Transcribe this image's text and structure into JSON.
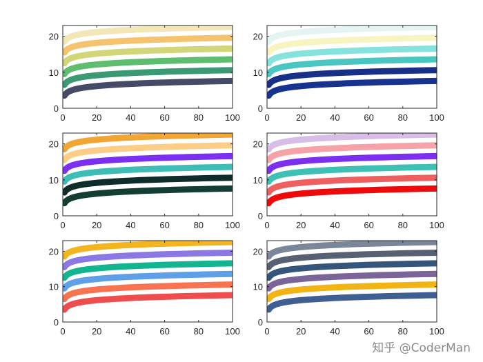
{
  "watermark": "知乎 @CoderMan",
  "chart_data": [
    {
      "type": "line",
      "panel": "row-1-left",
      "xlim": [
        0,
        100
      ],
      "ylim": [
        0,
        23
      ],
      "xticks": [
        0,
        20,
        40,
        60,
        80,
        100
      ],
      "yticks": [
        0,
        10,
        20
      ],
      "xlabel": "",
      "ylabel": "",
      "title": "",
      "legend": "none",
      "series": [
        {
          "name": "series-1",
          "color": "#454b66",
          "values": [
            {
              "x": 1,
              "y": 3.5
            },
            {
              "x": 100,
              "y": 7.6
            }
          ]
        },
        {
          "name": "series-2",
          "color": "#3b9a73",
          "values": [
            {
              "x": 1,
              "y": 6.5
            },
            {
              "x": 100,
              "y": 10.6
            }
          ]
        },
        {
          "name": "series-3",
          "color": "#5fbd6f",
          "values": [
            {
              "x": 1,
              "y": 9.5
            },
            {
              "x": 100,
              "y": 13.6
            }
          ]
        },
        {
          "name": "series-4",
          "color": "#d2d679",
          "values": [
            {
              "x": 1,
              "y": 12.5
            },
            {
              "x": 100,
              "y": 16.6
            }
          ]
        },
        {
          "name": "series-5",
          "color": "#f5c36e",
          "values": [
            {
              "x": 1,
              "y": 15.5
            },
            {
              "x": 100,
              "y": 19.6
            }
          ]
        },
        {
          "name": "series-6",
          "color": "#f3e6b7",
          "values": [
            {
              "x": 1,
              "y": 18.5
            },
            {
              "x": 100,
              "y": 22.6
            }
          ]
        }
      ]
    },
    {
      "type": "line",
      "panel": "row-1-right",
      "xlim": [
        0,
        100
      ],
      "ylim": [
        0,
        23
      ],
      "xticks": [
        0,
        20,
        40,
        60,
        80,
        100
      ],
      "yticks": [
        0,
        10,
        20
      ],
      "xlabel": "",
      "ylabel": "",
      "title": "",
      "legend": "none",
      "series": [
        {
          "name": "series-1",
          "color": "#17338f",
          "values": [
            {
              "x": 1,
              "y": 3.5
            },
            {
              "x": 100,
              "y": 7.6
            }
          ]
        },
        {
          "name": "series-2",
          "color": "#172f87",
          "values": [
            {
              "x": 1,
              "y": 6.5
            },
            {
              "x": 100,
              "y": 10.6
            }
          ]
        },
        {
          "name": "series-3",
          "color": "#49c6c2",
          "values": [
            {
              "x": 1,
              "y": 9.5
            },
            {
              "x": 100,
              "y": 13.6
            }
          ]
        },
        {
          "name": "series-4",
          "color": "#86e2dc",
          "values": [
            {
              "x": 1,
              "y": 12.5
            },
            {
              "x": 100,
              "y": 16.6
            }
          ]
        },
        {
          "name": "series-5",
          "color": "#f8f4c2",
          "values": [
            {
              "x": 1,
              "y": 15.5
            },
            {
              "x": 100,
              "y": 19.6
            }
          ]
        },
        {
          "name": "series-6",
          "color": "#e4f4f3",
          "values": [
            {
              "x": 1,
              "y": 18.5
            },
            {
              "x": 100,
              "y": 22.6
            }
          ]
        }
      ]
    },
    {
      "type": "line",
      "panel": "row-2-left",
      "xlim": [
        0,
        100
      ],
      "ylim": [
        0,
        23
      ],
      "xticks": [
        0,
        20,
        40,
        60,
        80,
        100
      ],
      "yticks": [
        0,
        10,
        20
      ],
      "xlabel": "",
      "ylabel": "",
      "title": "",
      "legend": "none",
      "series": [
        {
          "name": "series-1",
          "color": "#143d33",
          "values": [
            {
              "x": 1,
              "y": 3.5
            },
            {
              "x": 100,
              "y": 7.6
            }
          ]
        },
        {
          "name": "series-2",
          "color": "#0e2c2a",
          "values": [
            {
              "x": 1,
              "y": 6.5
            },
            {
              "x": 100,
              "y": 10.6
            }
          ]
        },
        {
          "name": "series-3",
          "color": "#3dbdb5",
          "values": [
            {
              "x": 1,
              "y": 9.5
            },
            {
              "x": 100,
              "y": 13.6
            }
          ]
        },
        {
          "name": "series-4",
          "color": "#7b2ff0",
          "values": [
            {
              "x": 1,
              "y": 12.5
            },
            {
              "x": 100,
              "y": 16.6
            }
          ]
        },
        {
          "name": "series-5",
          "color": "#fbcd86",
          "values": [
            {
              "x": 1,
              "y": 15.5
            },
            {
              "x": 100,
              "y": 19.6
            }
          ]
        },
        {
          "name": "series-6",
          "color": "#f1a533",
          "values": [
            {
              "x": 1,
              "y": 18.5
            },
            {
              "x": 100,
              "y": 22.6
            }
          ]
        }
      ]
    },
    {
      "type": "line",
      "panel": "row-2-right",
      "xlim": [
        0,
        100
      ],
      "ylim": [
        0,
        23
      ],
      "xticks": [
        0,
        20,
        40,
        60,
        80,
        100
      ],
      "yticks": [
        0,
        10,
        20
      ],
      "xlabel": "",
      "ylabel": "",
      "title": "",
      "legend": "none",
      "series": [
        {
          "name": "series-1",
          "color": "#ee0a0a",
          "values": [
            {
              "x": 1,
              "y": 3.5
            },
            {
              "x": 100,
              "y": 7.6
            }
          ]
        },
        {
          "name": "series-2",
          "color": "#ee6060",
          "values": [
            {
              "x": 1,
              "y": 6.5
            },
            {
              "x": 100,
              "y": 10.6
            }
          ]
        },
        {
          "name": "series-3",
          "color": "#3ec0b5",
          "values": [
            {
              "x": 1,
              "y": 9.5
            },
            {
              "x": 100,
              "y": 13.6
            }
          ]
        },
        {
          "name": "series-4",
          "color": "#7d2ff0",
          "values": [
            {
              "x": 1,
              "y": 12.5
            },
            {
              "x": 100,
              "y": 16.6
            }
          ]
        },
        {
          "name": "series-5",
          "color": "#f5a3a8",
          "values": [
            {
              "x": 1,
              "y": 15.5
            },
            {
              "x": 100,
              "y": 19.6
            }
          ]
        },
        {
          "name": "series-6",
          "color": "#d8bde6",
          "values": [
            {
              "x": 1,
              "y": 18.5
            },
            {
              "x": 100,
              "y": 22.6
            }
          ]
        }
      ]
    },
    {
      "type": "line",
      "panel": "row-3-left",
      "xlim": [
        0,
        100
      ],
      "ylim": [
        0,
        23
      ],
      "xticks": [
        0,
        20,
        40,
        60,
        80,
        100
      ],
      "yticks": [
        0,
        10,
        20
      ],
      "xlabel": "",
      "ylabel": "",
      "title": "",
      "legend": "none",
      "series": [
        {
          "name": "series-1",
          "color": "#ef4d4d",
          "values": [
            {
              "x": 1,
              "y": 3.5
            },
            {
              "x": 100,
              "y": 7.6
            }
          ]
        },
        {
          "name": "series-2",
          "color": "#f87352",
          "values": [
            {
              "x": 1,
              "y": 6.5
            },
            {
              "x": 100,
              "y": 10.6
            }
          ]
        },
        {
          "name": "series-3",
          "color": "#5e9fe8",
          "values": [
            {
              "x": 1,
              "y": 9.5
            },
            {
              "x": 100,
              "y": 13.6
            }
          ]
        },
        {
          "name": "series-4",
          "color": "#12b58f",
          "values": [
            {
              "x": 1,
              "y": 12.5
            },
            {
              "x": 100,
              "y": 16.6
            }
          ]
        },
        {
          "name": "series-5",
          "color": "#8b78e4",
          "values": [
            {
              "x": 1,
              "y": 15.5
            },
            {
              "x": 100,
              "y": 19.6
            }
          ]
        },
        {
          "name": "series-6",
          "color": "#f2b41f",
          "values": [
            {
              "x": 1,
              "y": 18.5
            },
            {
              "x": 100,
              "y": 22.6
            }
          ]
        }
      ]
    },
    {
      "type": "line",
      "panel": "row-3-right",
      "xlim": [
        0,
        100
      ],
      "ylim": [
        0,
        23
      ],
      "xticks": [
        0,
        20,
        40,
        60,
        80,
        100
      ],
      "yticks": [
        0,
        10,
        20
      ],
      "xlabel": "",
      "ylabel": "",
      "title": "",
      "legend": "none",
      "series": [
        {
          "name": "series-1",
          "color": "#3f5e91",
          "values": [
            {
              "x": 1,
              "y": 3.5
            },
            {
              "x": 100,
              "y": 7.6
            }
          ]
        },
        {
          "name": "series-2",
          "color": "#f2b414",
          "values": [
            {
              "x": 1,
              "y": 6.5
            },
            {
              "x": 100,
              "y": 10.6
            }
          ]
        },
        {
          "name": "series-3",
          "color": "#7a6498",
          "values": [
            {
              "x": 1,
              "y": 9.5
            },
            {
              "x": 100,
              "y": 13.6
            }
          ]
        },
        {
          "name": "series-4",
          "color": "#35567a",
          "values": [
            {
              "x": 1,
              "y": 12.5
            },
            {
              "x": 100,
              "y": 16.6
            }
          ]
        },
        {
          "name": "series-5",
          "color": "#586173",
          "values": [
            {
              "x": 1,
              "y": 15.5
            },
            {
              "x": 100,
              "y": 19.6
            }
          ]
        },
        {
          "name": "series-6",
          "color": "#7a879a",
          "values": [
            {
              "x": 1,
              "y": 18.5
            },
            {
              "x": 100,
              "y": 22.6
            }
          ]
        }
      ]
    }
  ]
}
